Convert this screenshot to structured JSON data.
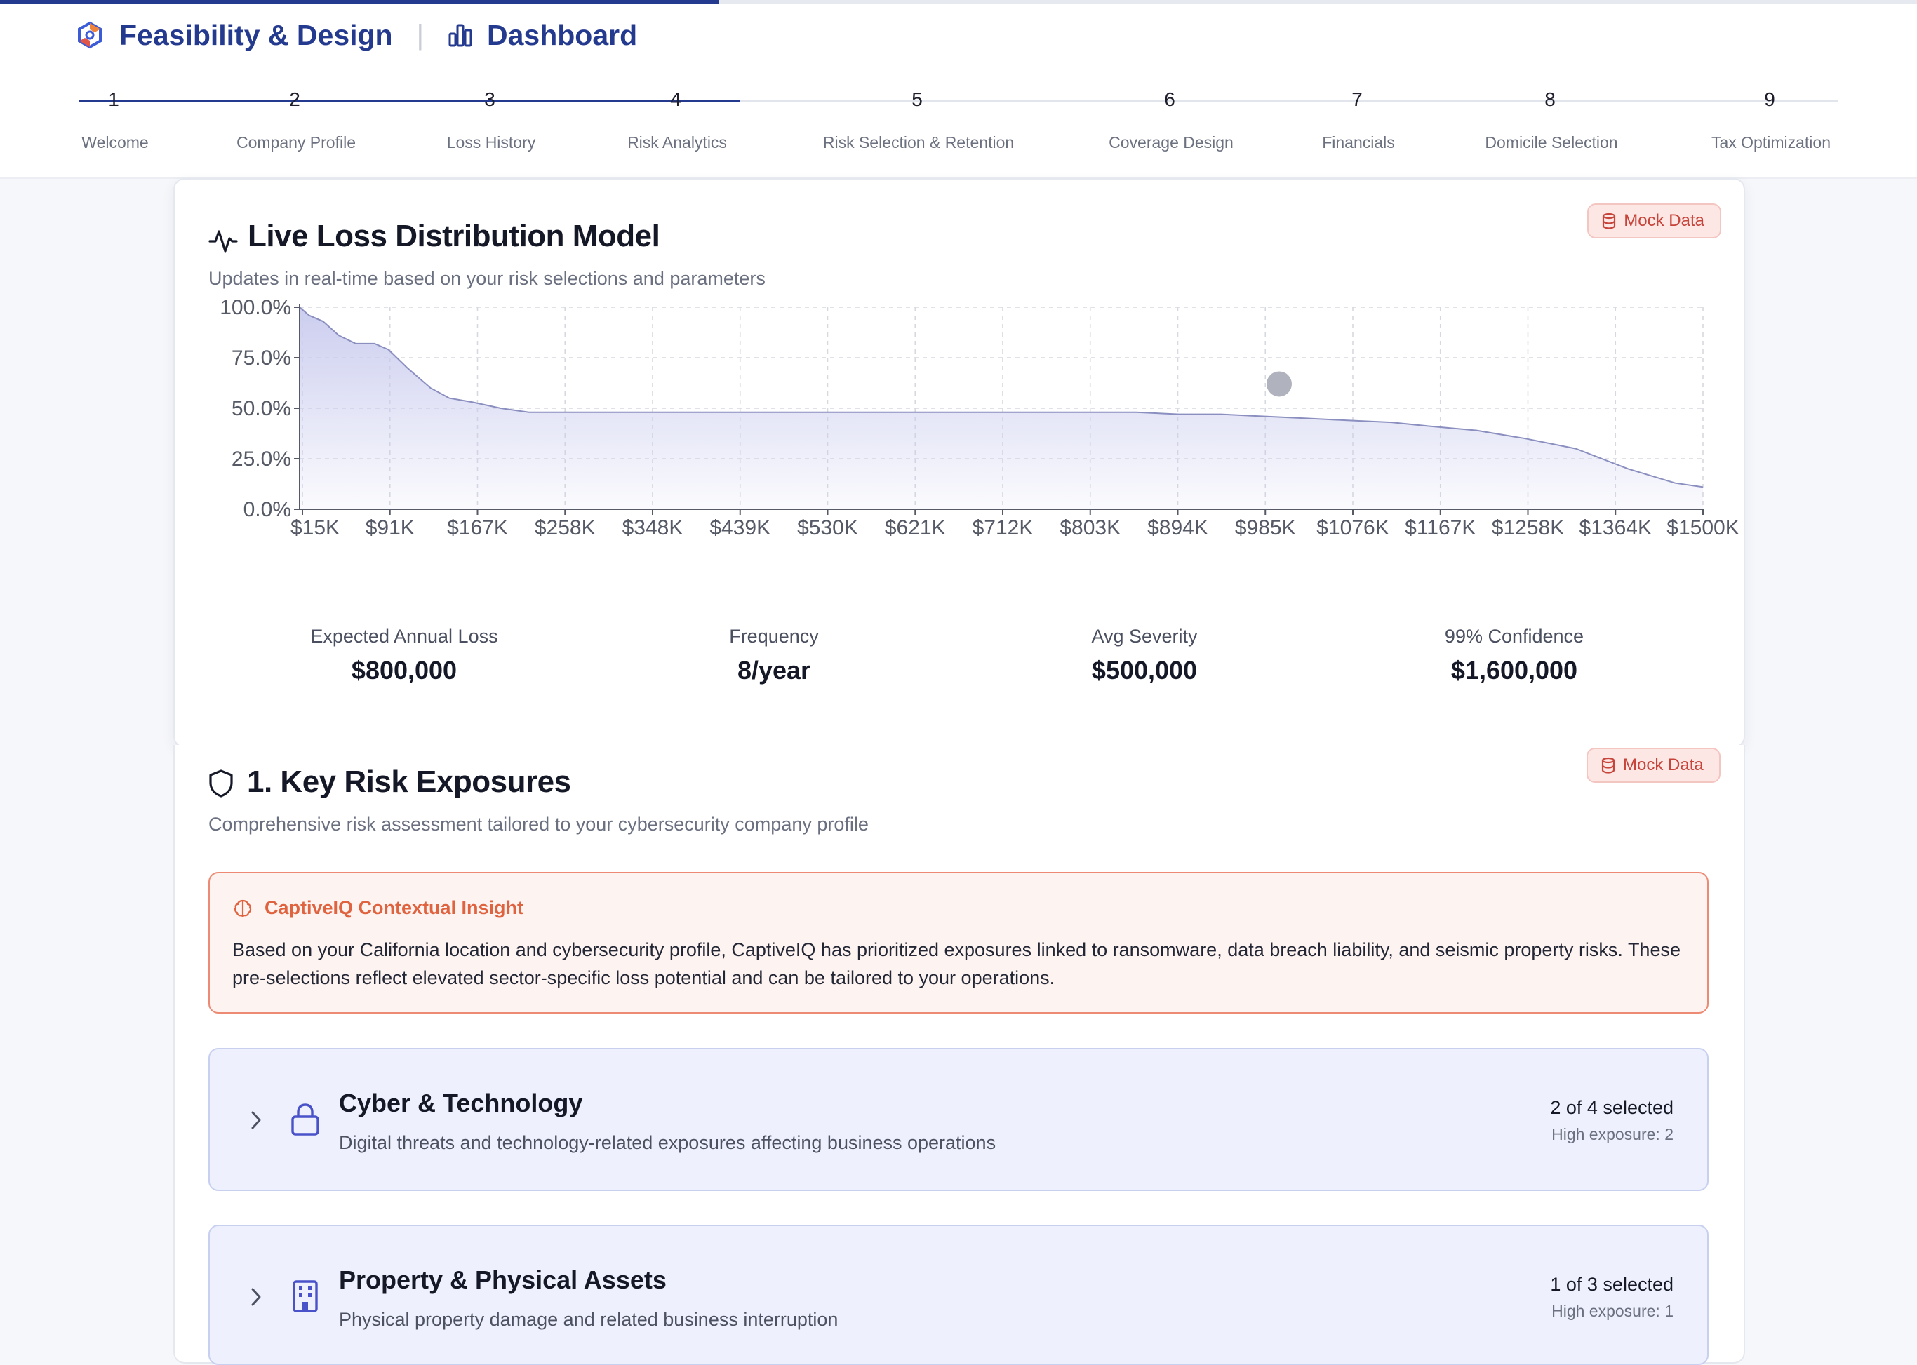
{
  "header": {
    "title": "Feasibility & Design",
    "separator": "|",
    "dashboard_label": "Dashboard",
    "progress_fraction": 0.375,
    "accent": "#233a8f"
  },
  "steps": [
    {
      "number": "1",
      "label": "Welcome",
      "state": "done"
    },
    {
      "number": "2",
      "label": "Company Profile",
      "state": "done"
    },
    {
      "number": "3",
      "label": "Loss History",
      "state": "done"
    },
    {
      "number": "4",
      "label": "Risk Analytics",
      "state": "current"
    },
    {
      "number": "5",
      "label": "Risk Selection & Retention",
      "state": "todo"
    },
    {
      "number": "6",
      "label": "Coverage Design",
      "state": "todo"
    },
    {
      "number": "7",
      "label": "Financials",
      "state": "todo"
    },
    {
      "number": "8",
      "label": "Domicile Selection",
      "state": "todo"
    },
    {
      "number": "9",
      "label": "Tax Optimization",
      "state": "todo"
    }
  ],
  "loss_model": {
    "title": "Live Loss Distribution Model",
    "subtitle": "Updates in real-time based on your risk selections and parameters",
    "badge": "Mock Data",
    "stats": [
      {
        "label": "Expected Annual Loss",
        "value": "$800,000"
      },
      {
        "label": "Frequency",
        "value": "8/year"
      },
      {
        "label": "Avg Severity",
        "value": "$500,000"
      },
      {
        "label": "99% Confidence",
        "value": "$1,600,000"
      }
    ]
  },
  "chart_data": {
    "type": "area",
    "title": "",
    "xlabel": "",
    "ylabel": "",
    "x_tick_labels": [
      "$15K",
      "$91K",
      "$167K",
      "$258K",
      "$348K",
      "$439K",
      "$530K",
      "$621K",
      "$712K",
      "$803K",
      "$894K",
      "$985K",
      "$1076K",
      "$1167K",
      "$1258K",
      "$1364K",
      "$1500K"
    ],
    "y_tick_labels": [
      "100.0%",
      "75.0%",
      "50.0%",
      "25.0%",
      "0.0%"
    ],
    "ylim": [
      0,
      100
    ],
    "xlim": [
      0,
      1500
    ],
    "grid": true,
    "series": [
      {
        "x": [
          0,
          10,
          25,
          42,
          60,
          80,
          95,
          115,
          140,
          160,
          185,
          215,
          245,
          275,
          310,
          348,
          390,
          439,
          480,
          530,
          580,
          621,
          670,
          712,
          760,
          803,
          850,
          894,
          940,
          985,
          1030,
          1076,
          1120,
          1167,
          1210,
          1258,
          1310,
          1364,
          1420,
          1470,
          1500
        ],
        "y": [
          100,
          96,
          93,
          86,
          82,
          82,
          79,
          70,
          60,
          55,
          53,
          50,
          48,
          48,
          48,
          48,
          48,
          48,
          48,
          48,
          48,
          48,
          48,
          48,
          48,
          48,
          48,
          48,
          47,
          47,
          46,
          45,
          44,
          43,
          41,
          39,
          35,
          30,
          20,
          13,
          11
        ]
      }
    ],
    "marker": {
      "x": 1047,
      "y": 62,
      "color": "#b0b3bd"
    },
    "fill_color": "#c9cbee",
    "line_color": "#8b8fc0"
  },
  "exposures": {
    "title": "1. Key Risk Exposures",
    "subtitle": "Comprehensive risk assessment tailored to your cybersecurity company profile",
    "badge": "Mock Data",
    "insight": {
      "title": "CaptiveIQ Contextual Insight",
      "body": "Based on your California location and cybersecurity profile, CaptiveIQ has prioritized exposures linked to ransomware, data breach liability, and seismic property risks. These pre-selections reflect elevated sector-specific loss potential and can be tailored to your operations."
    },
    "categories": [
      {
        "icon": "lock-icon",
        "title": "Cyber & Technology",
        "description": "Digital threats and technology-related exposures affecting business operations",
        "selected": "2 of 4 selected",
        "exposure": "High exposure: 2"
      },
      {
        "icon": "building-icon",
        "title": "Property & Physical Assets",
        "description": "Physical property damage and related business interruption",
        "selected": "1 of 3 selected",
        "exposure": "High exposure: 1"
      }
    ]
  }
}
